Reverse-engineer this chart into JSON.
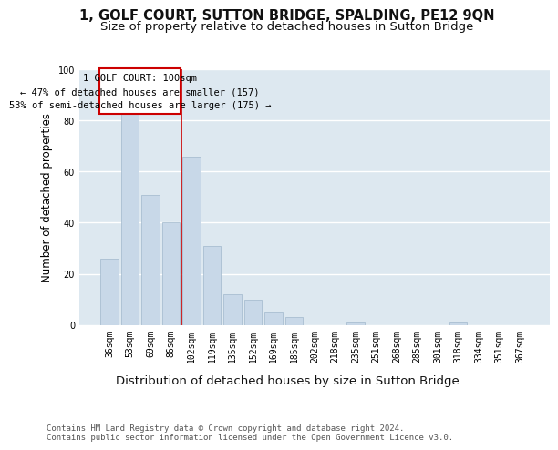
{
  "title1": "1, GOLF COURT, SUTTON BRIDGE, SPALDING, PE12 9QN",
  "title2": "Size of property relative to detached houses in Sutton Bridge",
  "xlabel": "Distribution of detached houses by size in Sutton Bridge",
  "ylabel": "Number of detached properties",
  "categories": [
    "36sqm",
    "53sqm",
    "69sqm",
    "86sqm",
    "102sqm",
    "119sqm",
    "135sqm",
    "152sqm",
    "169sqm",
    "185sqm",
    "202sqm",
    "218sqm",
    "235sqm",
    "251sqm",
    "268sqm",
    "285sqm",
    "301sqm",
    "318sqm",
    "334sqm",
    "351sqm",
    "367sqm"
  ],
  "values": [
    26,
    84,
    51,
    40,
    66,
    31,
    12,
    10,
    5,
    3,
    0,
    0,
    1,
    0,
    0,
    0,
    0,
    1,
    0,
    0,
    0
  ],
  "bar_color": "#c8d8e8",
  "bar_edge_color": "#a0b8cc",
  "background_color": "#dde8f0",
  "grid_color": "#ffffff",
  "vline_color": "#cc0000",
  "vline_index": 4,
  "annotation_line1": "1 GOLF COURT: 100sqm",
  "annotation_line2": "← 47% of detached houses are smaller (157)",
  "annotation_line3": "53% of semi-detached houses are larger (175) →",
  "annotation_box_color": "#ffffff",
  "annotation_box_edge": "#cc0000",
  "footer": "Contains HM Land Registry data © Crown copyright and database right 2024.\nContains public sector information licensed under the Open Government Licence v3.0.",
  "ylim": [
    0,
    100
  ],
  "title1_fontsize": 10.5,
  "title2_fontsize": 9.5,
  "xlabel_fontsize": 9.5,
  "ylabel_fontsize": 8.5,
  "tick_fontsize": 7,
  "annotation_fontsize": 7.5,
  "footer_fontsize": 6.5
}
